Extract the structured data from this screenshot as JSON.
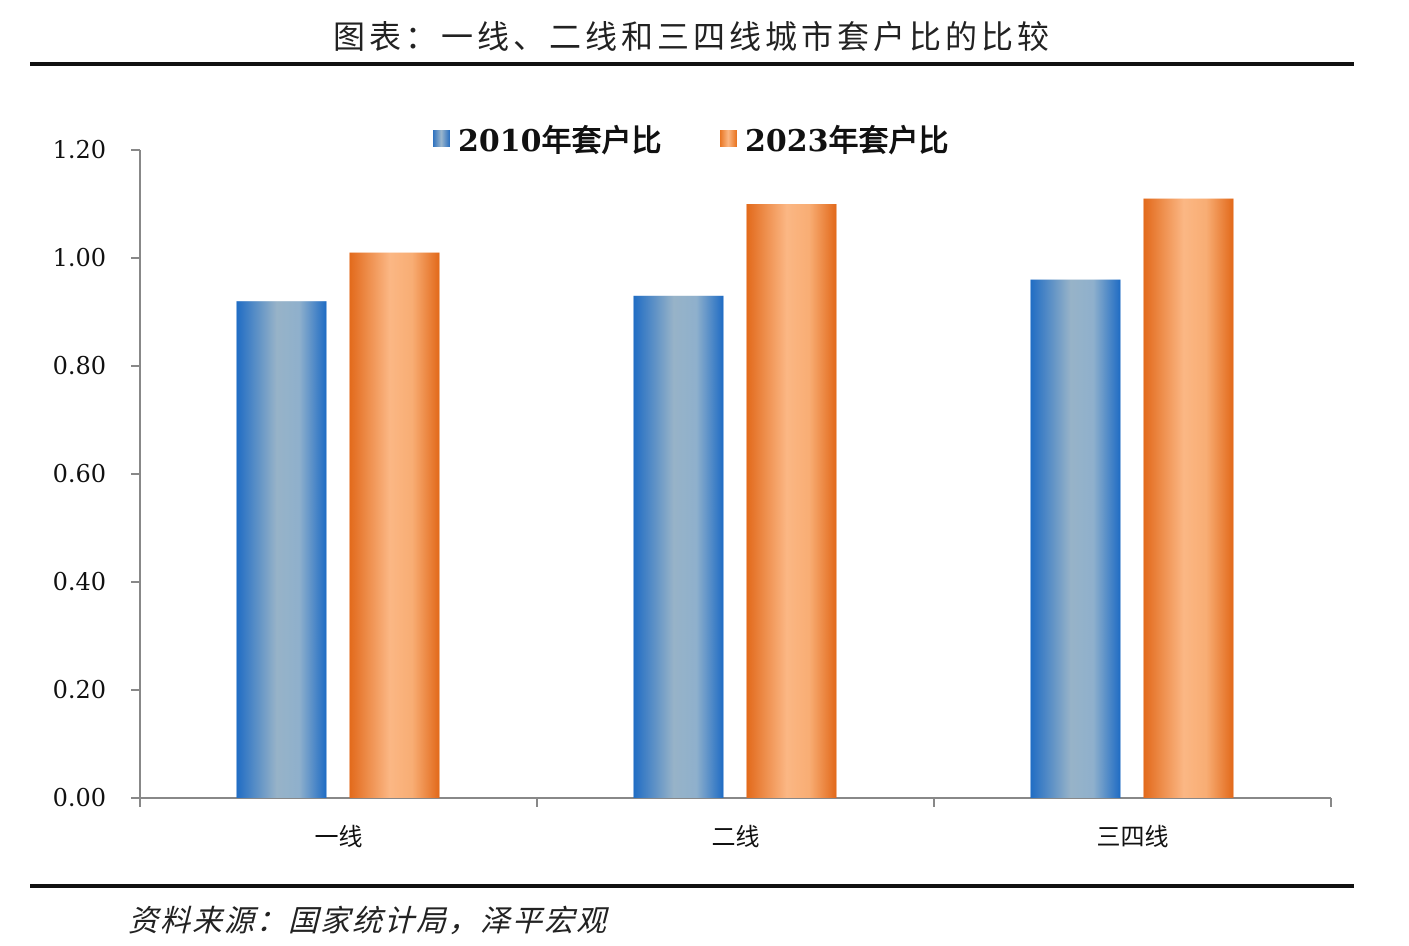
{
  "title": "图表：一线、二线和三四线城市套户比的比较",
  "source": "资料来源：国家统计局，泽平宏观",
  "chart_data": {
    "type": "bar",
    "categories": [
      "一线",
      "二线",
      "三四线"
    ],
    "series": [
      {
        "name": "2010年套户比",
        "values": [
          0.92,
          0.93,
          0.96
        ],
        "color": "#2a6fbf"
      },
      {
        "name": "2023年套户比",
        "values": [
          1.01,
          1.1,
          1.11
        ],
        "color": "#e8731f"
      }
    ],
    "yticks": [
      "0.00",
      "0.20",
      "0.40",
      "0.60",
      "0.80",
      "1.00",
      "1.20"
    ],
    "ylim": [
      0,
      1.2
    ],
    "grid": false,
    "legend": "top"
  }
}
